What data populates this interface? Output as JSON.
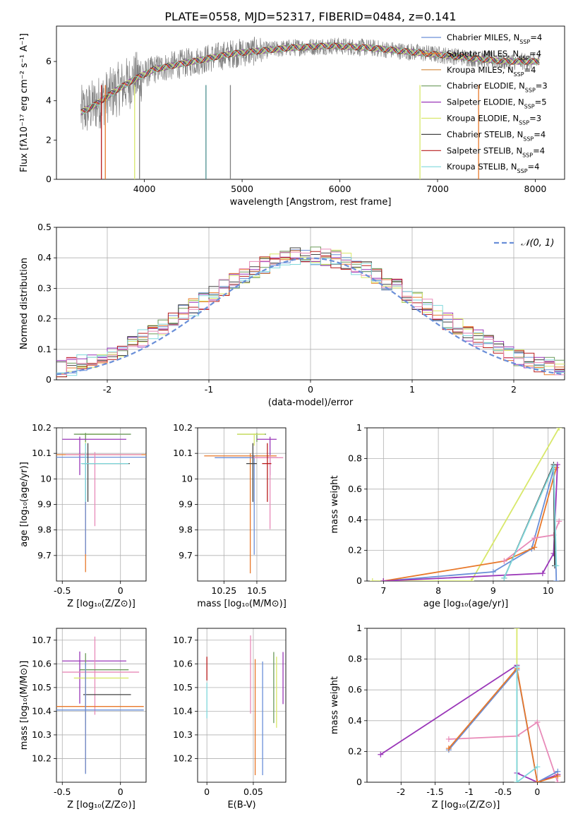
{
  "figure_title": "PLATE=0558, MJD=52317, FIBERID=0484, z=0.141",
  "colors": {
    "blue": "#6a8fd8",
    "orange": "#e8782a",
    "brown": "#d4883a",
    "green": "#6b9a5a",
    "purple": "#9a36b8",
    "yellowgreen": "#d8e86a",
    "black": "#444444",
    "red": "#b81c1c",
    "cyan": "#7fd8dc",
    "gray": "#808080",
    "pink": "#e88ab8",
    "olive": "#b8cc4a",
    "teal": "#4a8f8f"
  },
  "chart_data": [
    {
      "id": "spectrum",
      "type": "line",
      "xlabel": "wavelength [Angstrom, rest frame]",
      "ylabel": "Flux [fλ10⁻¹⁷ erg cm⁻² s⁻¹ A⁻¹]",
      "xlim": [
        3100,
        8300
      ],
      "ylim": [
        0,
        7.8
      ],
      "xticks": [
        4000,
        5000,
        6000,
        7000,
        8000
      ],
      "yticks": [
        0,
        2,
        4,
        6
      ],
      "legend": [
        {
          "label": "Chabrier MILES, N_SSP=4",
          "color": "#6a8fd8"
        },
        {
          "label": "Salpeter MILES, N_SSP=4",
          "color": "#e8782a"
        },
        {
          "label": "Kroupa MILES, N_SSP=4",
          "color": "#d4883a"
        },
        {
          "label": "Chabrier ELODIE, N_SSP=3",
          "color": "#6b9a5a"
        },
        {
          "label": "Salpeter ELODIE, N_SSP=5",
          "color": "#9a36b8"
        },
        {
          "label": "Kroupa ELODIE, N_SSP=3",
          "color": "#d8e86a"
        },
        {
          "label": "Chabrier STELIB, N_SSP=4",
          "color": "#444444"
        },
        {
          "label": "Salpeter STELIB, N_SSP=4",
          "color": "#b81c1c"
        },
        {
          "label": "Kroupa STELIB, N_SSP=4",
          "color": "#7fd8dc"
        }
      ],
      "data_trend": {
        "x": [
          3350,
          3500,
          3700,
          3900,
          4100,
          4300,
          4500,
          4700,
          4900,
          5100,
          5300,
          5500,
          5700,
          5900,
          6100,
          6300,
          6500,
          6700,
          6900,
          7100,
          7300,
          7500,
          7700,
          7900,
          8050
        ],
        "y": [
          3.4,
          3.8,
          4.5,
          5.1,
          5.6,
          5.8,
          6.0,
          6.2,
          6.4,
          6.5,
          6.6,
          6.7,
          6.75,
          6.8,
          6.75,
          6.7,
          6.6,
          6.5,
          6.4,
          6.3,
          6.2,
          6.1,
          6.0,
          6.0,
          6.0
        ]
      },
      "spikes": [
        {
          "x": 3560,
          "color": "#b81c1c"
        },
        {
          "x": 3600,
          "color": "#e8782a"
        },
        {
          "x": 3900,
          "color": "#d8e86a"
        },
        {
          "x": 3950,
          "color": "#808080"
        },
        {
          "x": 4630,
          "color": "#4a8f8f"
        },
        {
          "x": 4880,
          "color": "#808080"
        },
        {
          "x": 6820,
          "color": "#d8e86a"
        },
        {
          "x": 7420,
          "color": "#e8782a"
        }
      ]
    },
    {
      "id": "residuals",
      "type": "histogram",
      "xlabel": "(data-model)/error",
      "ylabel": "Normed distribution",
      "xlim": [
        -2.5,
        2.5
      ],
      "ylim": [
        0,
        0.5
      ],
      "xticks": [
        -2,
        -1,
        0,
        1,
        2
      ],
      "yticks": [
        0.0,
        0.1,
        0.2,
        0.3,
        0.4,
        0.5
      ],
      "legend": "𝒩(0, 1)"
    },
    {
      "id": "age_vs_Z",
      "type": "errorbar",
      "xlabel": "Z [log₁₀(Z/Z⊙)]",
      "ylabel": "age  [log₁₀(age/yr)]",
      "xlim": [
        -0.55,
        0.22
      ],
      "ylim": [
        9.6,
        10.2
      ],
      "xticks": [
        -0.5,
        0.0
      ],
      "yticks": [
        9.7,
        9.8,
        9.9,
        10.0,
        10.1,
        10.2
      ],
      "points": [
        {
          "x": -0.3,
          "xerr": [
            0.05,
            0.27
          ],
          "y": 10.175,
          "yerr": [
            0.045,
            0.003
          ],
          "color": "#d8e86a"
        },
        {
          "x": -0.3,
          "xerr": [
            0.1,
            0.39
          ],
          "y": 10.175,
          "yerr": [
            0.03,
            0.005
          ],
          "color": "#6b9a5a"
        },
        {
          "x": -0.35,
          "xerr": [
            0.15,
            0.4
          ],
          "y": 10.155,
          "yerr": [
            0.14,
            0.01
          ],
          "color": "#9a36b8"
        },
        {
          "x": -0.3,
          "xerr": [
            0.25,
            0.53
          ],
          "y": 10.095,
          "yerr": [
            0.46,
            0.01
          ],
          "color": "#e8782a"
        },
        {
          "x": -0.3,
          "xerr": [
            0.25,
            0.52
          ],
          "y": 10.085,
          "yerr": [
            0.38,
            0.01
          ],
          "color": "#6a8fd8"
        },
        {
          "x": -0.22,
          "xerr": [
            0.25,
            0.4
          ],
          "y": 10.095,
          "yerr": [
            0.28,
            0.01
          ],
          "color": "#e88ab8"
        },
        {
          "x": -0.28,
          "xerr": [
            0.05,
            0.36
          ],
          "y": 10.06,
          "yerr": [
            0.15,
            0.08
          ],
          "color": "#444444"
        },
        {
          "x": -0.3,
          "xerr": [
            0.04,
            0.37
          ],
          "y": 10.06,
          "yerr": [
            0.15,
            0.08
          ],
          "color": "#7fd8dc"
        }
      ]
    },
    {
      "id": "age_vs_mass",
      "type": "errorbar",
      "xlabel": "mass [log₁₀(M/M⊙)]",
      "xlim": [
        10.05,
        10.72
      ],
      "ylim": [
        9.6,
        10.2
      ],
      "xticks": [
        10.25,
        10.5
      ],
      "yticks": [
        9.7,
        9.8,
        9.9,
        10.0,
        10.1,
        10.2
      ],
      "points": [
        {
          "x": 10.5,
          "xerr": [
            0.15,
            0.07
          ],
          "y": 10.175,
          "yerr": [
            0.03,
            0.005
          ],
          "color": "#6b9a5a"
        },
        {
          "x": 10.48,
          "xerr": [
            0.13,
            0.08
          ],
          "y": 10.175,
          "yerr": [
            0.045,
            0.003
          ],
          "color": "#d8e86a"
        },
        {
          "x": 10.6,
          "xerr": [
            0.1,
            0.05
          ],
          "y": 10.155,
          "yerr": [
            0.14,
            0.01
          ],
          "color": "#9a36b8"
        },
        {
          "x": 10.45,
          "xerr": [
            0.35,
            0.2
          ],
          "y": 10.09,
          "yerr": [
            0.46,
            0.01
          ],
          "color": "#e8782a"
        },
        {
          "x": 10.48,
          "xerr": [
            0.3,
            0.18
          ],
          "y": 10.083,
          "yerr": [
            0.38,
            0.01
          ],
          "color": "#6a8fd8"
        },
        {
          "x": 10.6,
          "xerr": [
            0.14,
            0.1
          ],
          "y": 10.083,
          "yerr": [
            0.28,
            0.01
          ],
          "color": "#e88ab8"
        },
        {
          "x": 10.47,
          "xerr": [
            0.05,
            0.03
          ],
          "y": 10.06,
          "yerr": [
            0.15,
            0.08
          ],
          "color": "#444444"
        },
        {
          "x": 10.58,
          "xerr": [
            0.04,
            0.03
          ],
          "y": 10.06,
          "yerr": [
            0.15,
            0.08
          ],
          "color": "#b81c1c"
        }
      ]
    },
    {
      "id": "massweight_vs_age",
      "type": "line",
      "xlabel": "age  [log₁₀(age/yr)]",
      "ylabel": "mass weight",
      "xlim": [
        6.7,
        10.3
      ],
      "ylim": [
        0,
        1
      ],
      "xticks": [
        7,
        8,
        9,
        10
      ],
      "yticks": [
        0.0,
        0.2,
        0.4,
        0.6,
        0.8,
        1.0
      ],
      "series": [
        {
          "color": "#d8e86a",
          "x": [
            6.8,
            8.6,
            10.2
          ],
          "y": [
            0.0,
            0.0,
            1.0
          ]
        },
        {
          "color": "#6a8fd8",
          "x": [
            7.0,
            9.0,
            9.7,
            10.1,
            10.15
          ],
          "y": [
            0.0,
            0.06,
            0.21,
            0.73,
            0.0
          ]
        },
        {
          "color": "#e8782a",
          "x": [
            7.0,
            9.2,
            9.75,
            10.15
          ],
          "y": [
            0.0,
            0.13,
            0.22,
            0.74
          ]
        },
        {
          "color": "#9a36b8",
          "x": [
            7.0,
            9.9,
            10.1,
            10.17
          ],
          "y": [
            0.0,
            0.05,
            0.18,
            0.76
          ]
        },
        {
          "color": "#e88ab8",
          "x": [
            9.2,
            9.75,
            10.1,
            10.2
          ],
          "y": [
            0.13,
            0.28,
            0.3,
            0.39
          ]
        },
        {
          "color": "#444444",
          "x": [
            9.2,
            10.1,
            10.12
          ],
          "y": [
            0.02,
            0.76,
            0.1
          ]
        },
        {
          "color": "#7fd8dc",
          "x": [
            9.2,
            10.1,
            10.15
          ],
          "y": [
            0.02,
            0.75,
            0.1
          ]
        }
      ]
    },
    {
      "id": "mass_vs_Z",
      "type": "errorbar",
      "xlabel": "Z [log₁₀(Z/Z⊙)]",
      "ylabel": "mass [log₁₀(M/M⊙)]",
      "xlim": [
        -0.55,
        0.22
      ],
      "ylim": [
        10.1,
        10.75
      ],
      "xticks": [
        -0.5,
        0.0
      ],
      "yticks": [
        10.2,
        10.3,
        10.4,
        10.5,
        10.6,
        10.7
      ],
      "points": [
        {
          "x": -0.35,
          "xerr": [
            0.15,
            0.4
          ],
          "y": 10.612,
          "yerr": [
            0.18,
            0.04
          ],
          "color": "#9a36b8"
        },
        {
          "x": -0.22,
          "xerr": [
            0.28,
            0.38
          ],
          "y": 10.565,
          "yerr": [
            0.18,
            0.15
          ],
          "color": "#e88ab8"
        },
        {
          "x": -0.3,
          "xerr": [
            0.05,
            0.37
          ],
          "y": 10.575,
          "yerr": [
            0.23,
            0.07
          ],
          "color": "#6b9a5a"
        },
        {
          "x": -0.3,
          "xerr": [
            0.1,
            0.37
          ],
          "y": 10.54,
          "yerr": [
            0.2,
            0.05
          ],
          "color": "#d8e86a"
        },
        {
          "x": -0.3,
          "xerr": [
            0.02,
            0.39
          ],
          "y": 10.47,
          "yerr": [
            0.05,
            0.04
          ],
          "color": "#444444"
        },
        {
          "x": -0.3,
          "xerr": [
            0.25,
            0.5
          ],
          "y": 10.42,
          "yerr": [
            0.28,
            0.15
          ],
          "color": "#e8782a"
        },
        {
          "x": -0.3,
          "xerr": [
            0.25,
            0.5
          ],
          "y": 10.405,
          "yerr": [
            0.27,
            0.2
          ],
          "color": "#6a8fd8"
        }
      ]
    },
    {
      "id": "mass_vs_ebv",
      "type": "errorbar",
      "xlabel": "E(B-V)",
      "xlim": [
        -0.01,
        0.085
      ],
      "ylim": [
        10.1,
        10.75
      ],
      "xticks": [
        0.0,
        0.05
      ],
      "yticks": [
        10.2,
        10.3,
        10.4,
        10.5,
        10.6,
        10.7
      ],
      "points": [
        {
          "x": 0.0,
          "y": 10.53,
          "yerr": [
            0.0,
            0.1
          ],
          "color": "#b81c1c"
        },
        {
          "x": 0.0,
          "y": 10.45,
          "yerr": [
            0.08,
            0.07
          ],
          "color": "#7fd8dc"
        },
        {
          "x": 0.047,
          "y": 10.55,
          "yerr": [
            0.16,
            0.17
          ],
          "color": "#e88ab8"
        },
        {
          "x": 0.052,
          "y": 10.42,
          "yerr": [
            0.29,
            0.2
          ],
          "color": "#e8782a"
        },
        {
          "x": 0.06,
          "y": 10.41,
          "yerr": [
            0.28,
            0.2
          ],
          "color": "#6a8fd8"
        },
        {
          "x": 0.072,
          "y": 10.53,
          "yerr": [
            0.18,
            0.12
          ],
          "color": "#6b9a5a"
        },
        {
          "x": 0.075,
          "y": 10.5,
          "yerr": [
            0.17,
            0.13
          ],
          "color": "#d8e86a"
        },
        {
          "x": 0.082,
          "y": 10.55,
          "yerr": [
            0.12,
            0.1
          ],
          "color": "#9a36b8"
        }
      ]
    },
    {
      "id": "massweight_vs_Z",
      "type": "line",
      "xlabel": "Z [log₁₀(Z/Z⊙)]",
      "ylabel": "mass weight",
      "xlim": [
        -2.5,
        0.4
      ],
      "ylim": [
        0,
        1
      ],
      "xticks": [
        -2.0,
        -1.5,
        -1.0,
        -0.5,
        0.0
      ],
      "yticks": [
        0.0,
        0.2,
        0.4,
        0.6,
        0.8,
        1.0
      ],
      "series": [
        {
          "color": "#9a36b8",
          "x": [
            -2.3,
            -0.3,
            -0.3,
            0.0,
            0.3
          ],
          "y": [
            0.18,
            0.76,
            0.06,
            0.0,
            0.05
          ]
        },
        {
          "color": "#e88ab8",
          "x": [
            -1.3,
            -0.3,
            0.0,
            0.3
          ],
          "y": [
            0.28,
            0.3,
            0.39,
            0.0
          ]
        },
        {
          "color": "#6a8fd8",
          "x": [
            -1.3,
            -0.3,
            0.0,
            0.3
          ],
          "y": [
            0.21,
            0.73,
            0.0,
            0.07
          ]
        },
        {
          "color": "#e8782a",
          "x": [
            -1.3,
            -0.3,
            0.0,
            0.3
          ],
          "y": [
            0.22,
            0.74,
            0.0,
            0.04
          ]
        },
        {
          "color": "#d8e86a",
          "x": [
            -0.3,
            -0.3
          ],
          "y": [
            0.0,
            1.0
          ]
        },
        {
          "color": "#7fd8dc",
          "x": [
            -0.3,
            -0.3,
            0.0
          ],
          "y": [
            0.75,
            0.0,
            0.1
          ]
        }
      ]
    }
  ]
}
